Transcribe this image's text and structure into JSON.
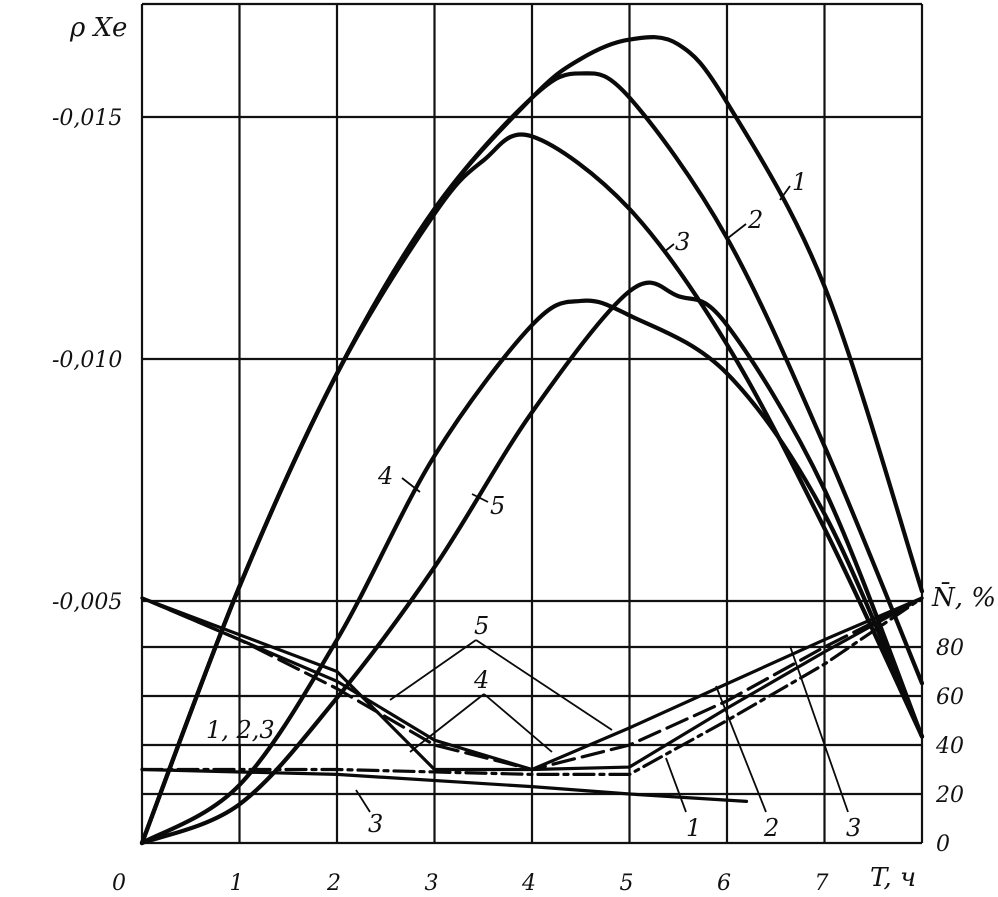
{
  "chart_data": {
    "type": "line",
    "x_axis": {
      "label": "T, ч",
      "ticks": [
        "0",
        "1",
        "2",
        "3",
        "4",
        "5",
        "6",
        "7"
      ],
      "range": [
        0,
        8
      ]
    },
    "y_axis_left": {
      "label": "ρ Xe",
      "ticks": [
        "-0,005",
        "-0,010",
        "-0,015"
      ],
      "range": [
        0,
        -0.0175
      ]
    },
    "y_axis_right": {
      "label": "N̄, %",
      "ticks": [
        "0",
        "20",
        "40",
        "60",
        "80"
      ],
      "range": [
        0,
        100
      ]
    },
    "grid": true,
    "reactivity_series": [
      {
        "name": "1",
        "x": [
          0,
          1,
          2,
          3,
          4,
          4.5,
          5,
          5.5,
          6,
          7,
          8
        ],
        "y": [
          0,
          -0.0053,
          -0.0097,
          -0.0131,
          -0.0154,
          -0.0162,
          -0.0166,
          -0.0165,
          -0.0153,
          -0.0115,
          -0.0052
        ]
      },
      {
        "name": "2",
        "x": [
          0,
          1,
          2,
          3,
          4,
          4.5,
          5,
          6,
          7,
          8
        ],
        "y": [
          0,
          -0.0053,
          -0.0097,
          -0.0131,
          -0.0154,
          -0.0159,
          -0.0154,
          -0.0125,
          -0.0082,
          -0.0033
        ]
      },
      {
        "name": "3",
        "x": [
          0,
          1,
          2,
          3,
          3.5,
          4,
          5,
          6,
          7,
          8
        ],
        "y": [
          0,
          -0.0053,
          -0.0097,
          -0.013,
          -0.0141,
          -0.0146,
          -0.0131,
          -0.0103,
          -0.0065,
          -0.0022
        ]
      },
      {
        "name": "4",
        "x": [
          0,
          1,
          2,
          3,
          4,
          4.5,
          5,
          6,
          7,
          8
        ],
        "y": [
          0,
          -0.0012,
          -0.0042,
          -0.008,
          -0.0107,
          -0.0112,
          -0.0109,
          -0.0097,
          -0.0068,
          -0.0022
        ]
      },
      {
        "name": "5",
        "x": [
          0,
          1,
          2,
          3,
          4,
          5,
          5.5,
          6,
          7,
          8
        ],
        "y": [
          0,
          -0.0008,
          -0.003,
          -0.0057,
          -0.0089,
          -0.0114,
          -0.0113,
          -0.0107,
          -0.0073,
          -0.0022
        ]
      }
    ],
    "power_series": [
      {
        "name": "1",
        "style": "solid",
        "x": [
          0,
          2,
          4,
          5,
          6.2
        ],
        "y": [
          30,
          28,
          23,
          20,
          17
        ]
      },
      {
        "name": "2",
        "style": "dash",
        "x": [
          0,
          1,
          2,
          3,
          4,
          5,
          6,
          7,
          8
        ],
        "y": [
          100,
          83,
          63,
          40,
          30,
          40,
          58,
          80,
          100
        ]
      },
      {
        "name": "3",
        "style": "dash-dot",
        "x": [
          0,
          2,
          3,
          4,
          5,
          6,
          7,
          8
        ],
        "y": [
          30,
          30,
          29,
          28,
          28,
          50,
          73,
          100
        ]
      },
      {
        "name": "4",
        "style": "solid",
        "x": [
          0,
          2,
          3,
          4,
          5,
          6,
          7,
          8
        ],
        "y": [
          100,
          70,
          30,
          30,
          47,
          65,
          83,
          100
        ]
      },
      {
        "name": "5",
        "style": "solid",
        "x": [
          0,
          2,
          3,
          4,
          5,
          6,
          7,
          8
        ],
        "y": [
          100,
          66,
          42,
          30,
          31,
          55,
          78,
          100
        ]
      }
    ],
    "labels": {
      "c1": "1",
      "c2": "2",
      "c3": "3",
      "c4": "4",
      "c5": "5",
      "p123": "1, 2,3",
      "p3": "3",
      "p4": "4",
      "p5": "5",
      "pb1": "1",
      "pb2": "2",
      "pb3": "3"
    }
  }
}
